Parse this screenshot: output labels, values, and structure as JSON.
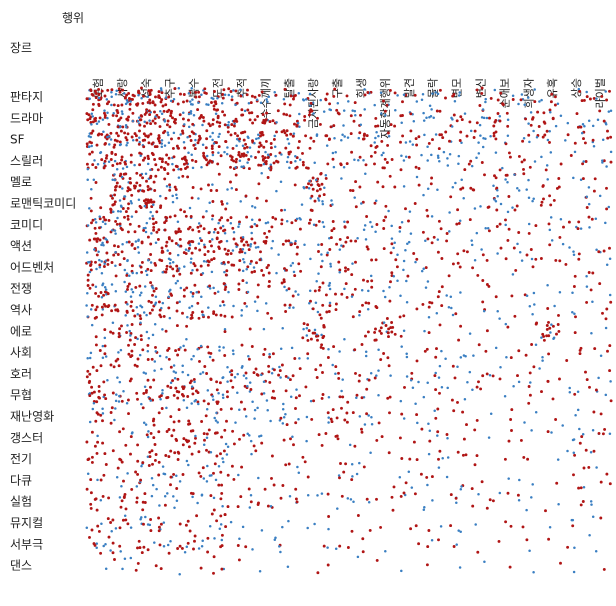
{
  "chart_data": {
    "type": "scatter",
    "xlabel": "행위",
    "ylabel": "장르",
    "columns": [
      "모험",
      "사랑",
      "성숙",
      "추구",
      "복수",
      "도전",
      "추적",
      "수수께끼",
      "탈출",
      "금지된사랑",
      "구출",
      "희생",
      "자동한계행위",
      "발견",
      "몰락",
      "변모",
      "변신",
      "순애보",
      "희생자",
      "유혹",
      "상승",
      "라이벌"
    ],
    "rows": [
      "판타지",
      "드라마",
      "SF",
      "스릴러",
      "멜로",
      "로맨틱코미디",
      "코미디",
      "액션",
      "어드벤처",
      "전쟁",
      "역사",
      "에로",
      "사회",
      "호러",
      "무협",
      "재난영화",
      "갱스터",
      "전기",
      "다큐",
      "실험",
      "뮤지컬",
      "서부극",
      "댄스"
    ],
    "density": [
      [
        0.95,
        0.95,
        0.9,
        0.85,
        0.8,
        0.8,
        0.7,
        0.6,
        0.55,
        0.5,
        0.5,
        0.45,
        0.45,
        0.4,
        0.45,
        0.4,
        0.45,
        0.45,
        0.5,
        0.4,
        0.4,
        0.45
      ],
      [
        0.9,
        0.95,
        0.95,
        0.85,
        0.8,
        0.8,
        0.7,
        0.65,
        0.6,
        0.55,
        0.55,
        0.5,
        0.5,
        0.45,
        0.5,
        0.5,
        0.5,
        0.55,
        0.5,
        0.5,
        0.45,
        0.5
      ],
      [
        0.95,
        0.8,
        0.85,
        0.85,
        0.8,
        0.75,
        0.85,
        0.8,
        0.65,
        0.4,
        0.55,
        0.5,
        0.55,
        0.5,
        0.5,
        0.45,
        0.5,
        0.45,
        0.45,
        0.4,
        0.45,
        0.45
      ],
      [
        0.8,
        0.75,
        0.7,
        0.8,
        0.85,
        0.7,
        0.95,
        0.9,
        0.7,
        0.4,
        0.5,
        0.45,
        0.5,
        0.45,
        0.45,
        0.4,
        0.4,
        0.35,
        0.4,
        0.35,
        0.35,
        0.4
      ],
      [
        0.3,
        0.95,
        0.9,
        0.5,
        0.35,
        0.4,
        0.3,
        0.3,
        0.2,
        0.85,
        0.25,
        0.35,
        0.3,
        0.25,
        0.3,
        0.35,
        0.3,
        0.6,
        0.35,
        0.4,
        0.25,
        0.3
      ],
      [
        0.3,
        0.95,
        0.85,
        0.5,
        0.3,
        0.45,
        0.3,
        0.25,
        0.2,
        0.6,
        0.25,
        0.3,
        0.3,
        0.25,
        0.2,
        0.3,
        0.3,
        0.55,
        0.3,
        0.4,
        0.3,
        0.3
      ],
      [
        0.75,
        0.75,
        0.7,
        0.7,
        0.6,
        0.7,
        0.6,
        0.55,
        0.5,
        0.45,
        0.45,
        0.35,
        0.4,
        0.35,
        0.35,
        0.35,
        0.35,
        0.35,
        0.3,
        0.35,
        0.35,
        0.35
      ],
      [
        0.8,
        0.6,
        0.6,
        0.75,
        0.8,
        0.7,
        0.85,
        0.55,
        0.6,
        0.35,
        0.6,
        0.4,
        0.4,
        0.35,
        0.4,
        0.3,
        0.3,
        0.3,
        0.3,
        0.3,
        0.3,
        0.35
      ],
      [
        0.85,
        0.65,
        0.65,
        0.8,
        0.6,
        0.7,
        0.6,
        0.6,
        0.5,
        0.3,
        0.5,
        0.35,
        0.35,
        0.4,
        0.3,
        0.3,
        0.3,
        0.25,
        0.3,
        0.25,
        0.3,
        0.3
      ],
      [
        0.8,
        0.55,
        0.65,
        0.5,
        0.55,
        0.6,
        0.4,
        0.35,
        0.5,
        0.4,
        0.55,
        0.5,
        0.3,
        0.25,
        0.35,
        0.25,
        0.25,
        0.2,
        0.25,
        0.2,
        0.25,
        0.25
      ],
      [
        0.7,
        0.65,
        0.7,
        0.6,
        0.65,
        0.55,
        0.4,
        0.35,
        0.35,
        0.5,
        0.4,
        0.45,
        0.3,
        0.3,
        0.45,
        0.3,
        0.25,
        0.25,
        0.25,
        0.25,
        0.3,
        0.35
      ],
      [
        0.3,
        0.7,
        0.55,
        0.25,
        0.2,
        0.2,
        0.15,
        0.15,
        0.15,
        0.85,
        0.15,
        0.2,
        0.8,
        0.2,
        0.25,
        0.2,
        0.2,
        0.2,
        0.2,
        0.75,
        0.15,
        0.2
      ],
      [
        0.55,
        0.5,
        0.6,
        0.5,
        0.5,
        0.5,
        0.4,
        0.35,
        0.3,
        0.35,
        0.3,
        0.35,
        0.3,
        0.3,
        0.35,
        0.3,
        0.25,
        0.25,
        0.3,
        0.25,
        0.3,
        0.3
      ],
      [
        0.55,
        0.45,
        0.45,
        0.5,
        0.55,
        0.5,
        0.6,
        0.65,
        0.55,
        0.3,
        0.4,
        0.4,
        0.35,
        0.35,
        0.35,
        0.3,
        0.35,
        0.25,
        0.4,
        0.25,
        0.2,
        0.25
      ],
      [
        0.7,
        0.55,
        0.6,
        0.65,
        0.8,
        0.65,
        0.5,
        0.4,
        0.4,
        0.35,
        0.4,
        0.35,
        0.25,
        0.3,
        0.3,
        0.3,
        0.25,
        0.2,
        0.25,
        0.2,
        0.3,
        0.35
      ],
      [
        0.5,
        0.4,
        0.4,
        0.45,
        0.35,
        0.5,
        0.35,
        0.35,
        0.55,
        0.2,
        0.6,
        0.45,
        0.2,
        0.3,
        0.3,
        0.25,
        0.2,
        0.2,
        0.2,
        0.2,
        0.2,
        0.2
      ],
      [
        0.4,
        0.4,
        0.45,
        0.45,
        0.65,
        0.55,
        0.45,
        0.3,
        0.3,
        0.25,
        0.3,
        0.3,
        0.2,
        0.2,
        0.35,
        0.25,
        0.2,
        0.2,
        0.2,
        0.2,
        0.4,
        0.4
      ],
      [
        0.45,
        0.4,
        0.6,
        0.5,
        0.35,
        0.6,
        0.25,
        0.2,
        0.25,
        0.2,
        0.2,
        0.3,
        0.15,
        0.25,
        0.35,
        0.3,
        0.2,
        0.15,
        0.2,
        0.15,
        0.35,
        0.3
      ],
      [
        0.4,
        0.35,
        0.5,
        0.55,
        0.3,
        0.5,
        0.25,
        0.3,
        0.25,
        0.15,
        0.25,
        0.25,
        0.15,
        0.3,
        0.3,
        0.3,
        0.2,
        0.15,
        0.2,
        0.15,
        0.3,
        0.25
      ],
      [
        0.5,
        0.45,
        0.45,
        0.45,
        0.4,
        0.45,
        0.35,
        0.35,
        0.35,
        0.25,
        0.3,
        0.3,
        0.25,
        0.3,
        0.25,
        0.3,
        0.3,
        0.25,
        0.3,
        0.2,
        0.2,
        0.2
      ],
      [
        0.4,
        0.55,
        0.5,
        0.45,
        0.3,
        0.5,
        0.2,
        0.15,
        0.2,
        0.2,
        0.2,
        0.25,
        0.15,
        0.2,
        0.2,
        0.25,
        0.15,
        0.2,
        0.15,
        0.15,
        0.25,
        0.2
      ],
      [
        0.5,
        0.35,
        0.45,
        0.45,
        0.55,
        0.45,
        0.3,
        0.2,
        0.25,
        0.15,
        0.3,
        0.2,
        0.15,
        0.15,
        0.25,
        0.2,
        0.15,
        0.15,
        0.2,
        0.15,
        0.2,
        0.2
      ],
      [
        0.15,
        0.3,
        0.25,
        0.2,
        0.1,
        0.3,
        0.1,
        0.1,
        0.1,
        0.1,
        0.1,
        0.1,
        0.1,
        0.1,
        0.1,
        0.1,
        0.1,
        0.1,
        0.1,
        0.1,
        0.15,
        0.1
      ]
    ],
    "marker_colors": {
      "primary": "#b01515",
      "secondary": "#3a7fc2"
    },
    "grid": false,
    "legend": "none"
  }
}
